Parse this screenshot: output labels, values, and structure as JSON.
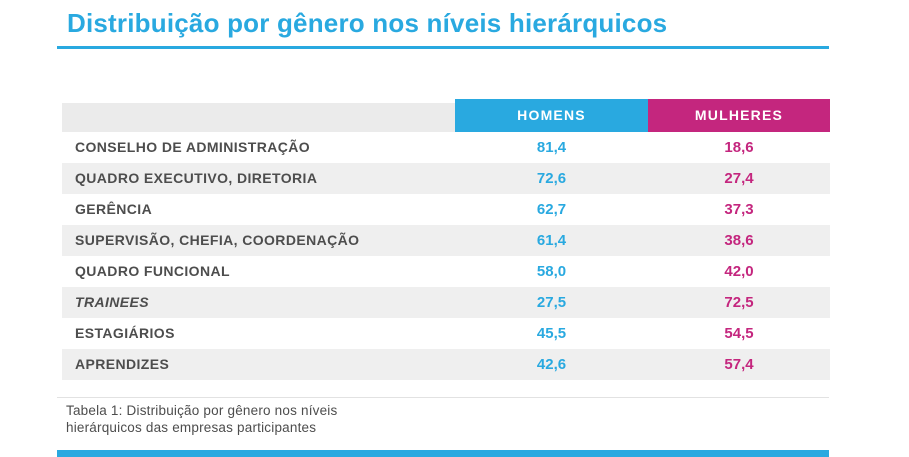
{
  "title": "Distribuição por gênero nos níveis hierárquicos",
  "colors": {
    "blue": "#29A9E0",
    "magenta": "#C4267E",
    "row-alt": "#EFEFEF",
    "header-gray": "#EBEBEB",
    "label": "#4D4D4D",
    "caption": "#4D4D4D"
  },
  "table": {
    "headers": {
      "homens": "HOMENS",
      "mulheres": "MULHERES"
    },
    "rows": [
      {
        "label": "CONSELHO DE ADMINISTRAÇÃO",
        "homens": "81,4",
        "mulheres": "18,6",
        "italic": false
      },
      {
        "label": "QUADRO EXECUTIVO, DIRETORIA",
        "homens": "72,6",
        "mulheres": "27,4",
        "italic": false
      },
      {
        "label": "GERÊNCIA",
        "homens": "62,7",
        "mulheres": "37,3",
        "italic": false
      },
      {
        "label": "SUPERVISÃO, CHEFIA, COORDENAÇÃO",
        "homens": "61,4",
        "mulheres": "38,6",
        "italic": false
      },
      {
        "label": "QUADRO FUNCIONAL",
        "homens": "58,0",
        "mulheres": "42,0",
        "italic": false
      },
      {
        "label": "TRAINEES",
        "homens": "27,5",
        "mulheres": "72,5",
        "italic": true
      },
      {
        "label": "ESTAGIÁRIOS",
        "homens": "45,5",
        "mulheres": "54,5",
        "italic": false
      },
      {
        "label": "APRENDIZES",
        "homens": "42,6",
        "mulheres": "57,4",
        "italic": false
      }
    ]
  },
  "caption": {
    "line1": "Tabela 1: Distribuição por gênero nos níveis",
    "line2": "hierárquicos das empresas participantes"
  },
  "chart_data": {
    "type": "table",
    "title": "Distribuição por gênero nos níveis hierárquicos",
    "caption": "Tabela 1: Distribuição por gênero nos níveis hierárquicos das empresas participantes",
    "categories": [
      "CONSELHO DE ADMINISTRAÇÃO",
      "QUADRO EXECUTIVO, DIRETORIA",
      "GERÊNCIA",
      "SUPERVISÃO, CHEFIA, COORDENAÇÃO",
      "QUADRO FUNCIONAL",
      "TRAINEES",
      "ESTAGIÁRIOS",
      "APRENDIZES"
    ],
    "series": [
      {
        "name": "HOMENS",
        "color": "#29A9E0",
        "values": [
          81.4,
          72.6,
          62.7,
          61.4,
          58.0,
          27.5,
          45.5,
          42.6
        ]
      },
      {
        "name": "MULHERES",
        "color": "#C4267E",
        "values": [
          18.6,
          27.4,
          37.3,
          38.6,
          42.0,
          72.5,
          54.5,
          57.4
        ]
      }
    ],
    "value_unit": "%"
  }
}
